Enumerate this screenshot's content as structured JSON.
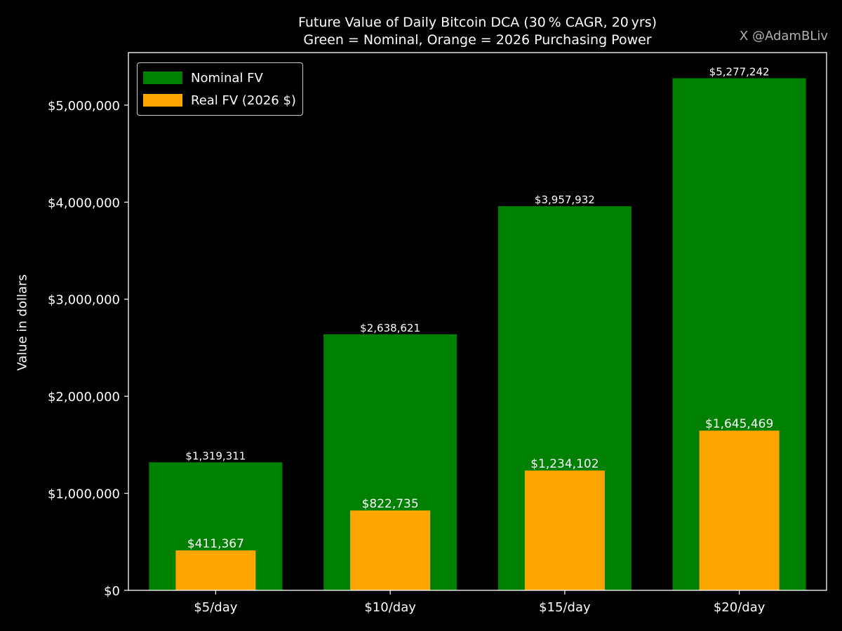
{
  "title_lines": [
    "Future Value of Daily Bitcoin DCA (30 % CAGR, 20 yrs)",
    "Green = Nominal, Orange = 2026 Purchasing Power"
  ],
  "watermark": "X @AdamBLiv",
  "colors": {
    "background": "#000000",
    "nominal": "#008000",
    "real": "#ffa500",
    "axis": "#ffffff",
    "text": "#ffffff"
  },
  "chart_data": {
    "type": "bar",
    "title": "Future Value of Daily Bitcoin DCA (30 % CAGR, 20 yrs)",
    "subtitle": "Green = Nominal, Orange = 2026 Purchasing Power",
    "xlabel": "",
    "ylabel": "Value in dollars",
    "categories": [
      "$5/day",
      "$10/day",
      "$15/day",
      "$20/day"
    ],
    "series": [
      {
        "name": "Nominal FV",
        "color": "#008000",
        "values": [
          1319311,
          2638621,
          3957932,
          5277242
        ],
        "labels": [
          "$1,319,311",
          "$2,638,621",
          "$3,957,932",
          "$5,277,242"
        ]
      },
      {
        "name": "Real FV (2026 $)",
        "color": "#ffa500",
        "values": [
          411367,
          822735,
          1234102,
          1645469
        ],
        "labels": [
          "$411,367",
          "$822,735",
          "$1,234,102",
          "$1,645,469"
        ]
      }
    ],
    "ylim": [
      0,
      5541104
    ],
    "yticks": [
      0,
      1000000,
      2000000,
      3000000,
      4000000,
      5000000
    ],
    "ytick_labels": [
      "$0",
      "$1,000,000",
      "$2,000,000",
      "$3,000,000",
      "$4,000,000",
      "$5,000,000"
    ],
    "legend_position": "top-left",
    "grid": false
  }
}
